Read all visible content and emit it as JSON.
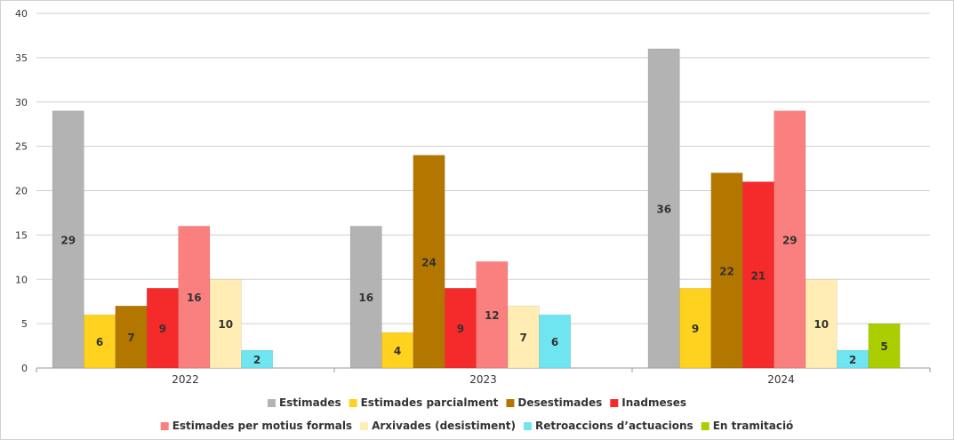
{
  "chart_data": {
    "type": "bar",
    "categories": [
      "2022",
      "2023",
      "2024"
    ],
    "ylim": [
      0,
      40
    ],
    "yticks": [
      0,
      5,
      10,
      15,
      20,
      25,
      30,
      35,
      40
    ],
    "grid": true,
    "legend_position": "bottom",
    "series": [
      {
        "name": "Estimades",
        "color": "#b3b3b3",
        "values": [
          29,
          16,
          36
        ]
      },
      {
        "name": "Estimades parcialment",
        "color": "#ffd21f",
        "values": [
          6,
          4,
          9
        ]
      },
      {
        "name": "Desestimades",
        "color": "#b37700",
        "values": [
          7,
          24,
          22
        ]
      },
      {
        "name": "Inadmeses",
        "color": "#f52a2a",
        "values": [
          9,
          9,
          21
        ]
      },
      {
        "name": "Estimades per motius formals",
        "color": "#fa8080",
        "values": [
          16,
          12,
          29
        ]
      },
      {
        "name": "Arxivades (desistiment)",
        "color": "#ffedb3",
        "values": [
          10,
          7,
          10
        ]
      },
      {
        "name": "Retroaccions d’actuacions",
        "color": "#6fe5f2",
        "values": [
          2,
          6,
          2
        ]
      },
      {
        "name": "En tramitació",
        "color": "#aace00",
        "values": [
          null,
          null,
          5
        ]
      }
    ]
  }
}
